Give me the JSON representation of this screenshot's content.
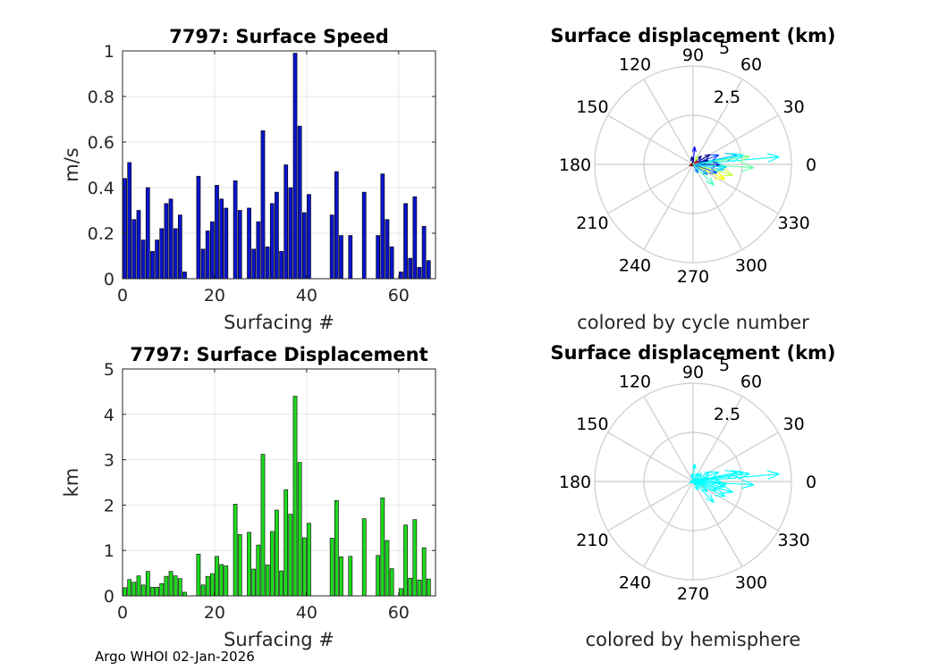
{
  "footer_text": "Argo WHOI 02-Jan-2026",
  "chart_data": [
    {
      "type": "bar",
      "title": "7797: Surface Speed",
      "xlabel": "Surfacing #",
      "ylabel": "m/s",
      "xlim": [
        0,
        68
      ],
      "ylim": [
        0,
        1
      ],
      "xticks": [
        0,
        20,
        40,
        60
      ],
      "yticks": [
        0,
        0.2,
        0.4,
        0.6,
        0.8,
        1
      ],
      "ytick_labels": [
        "0",
        "0.2",
        "0.4",
        "0.6",
        "0.8",
        "1"
      ],
      "bar_color": "#0a14c8",
      "x": [
        0,
        1,
        2,
        3,
        4,
        5,
        6,
        7,
        8,
        9,
        10,
        11,
        12,
        13,
        16,
        17,
        18,
        19,
        20,
        21,
        22,
        24,
        25,
        27,
        28,
        29,
        30,
        31,
        32,
        33,
        34,
        35,
        36,
        37,
        38,
        39,
        40,
        45,
        46,
        47,
        49,
        52,
        55,
        56,
        57,
        58,
        60,
        61,
        62,
        63,
        64,
        65,
        66
      ],
      "values": [
        0.44,
        0.51,
        0.26,
        0.3,
        0.17,
        0.4,
        0.12,
        0.17,
        0.22,
        0.33,
        0.35,
        0.22,
        0.28,
        0.03,
        0.45,
        0.13,
        0.21,
        0.25,
        0.41,
        0.35,
        0.31,
        0.43,
        0.3,
        0.31,
        0.13,
        0.25,
        0.65,
        0.14,
        0.33,
        0.38,
        0.12,
        0.5,
        0.4,
        0.99,
        0.67,
        0.29,
        0.37,
        0.28,
        0.47,
        0.19,
        0.19,
        0.38,
        0.19,
        0.46,
        0.26,
        0.14,
        0.03,
        0.33,
        0.09,
        0.36,
        0.05,
        0.23,
        0.08
      ]
    },
    {
      "type": "polar-compass",
      "title": "Surface displacement (km)",
      "caption": "colored by cycle number",
      "rlim": [
        0,
        5
      ],
      "r_tick_labels": [
        "2.5",
        "5"
      ],
      "theta_tick_labels": [
        "0",
        "30",
        "60",
        "90",
        "120",
        "150",
        "180",
        "210",
        "240",
        "270",
        "300",
        "330"
      ],
      "grid_color": "#d2d2d2",
      "arrows": [
        {
          "angle": 5,
          "r": 4.4,
          "color": "#00ffff"
        },
        {
          "angle": -3,
          "r": 3.1,
          "color": "#60ff9e"
        },
        {
          "angle": 12,
          "r": 2.3,
          "color": "#00c0ff"
        },
        {
          "angle": 8,
          "r": 2.9,
          "color": "#80ff80"
        },
        {
          "angle": -15,
          "r": 2.1,
          "color": "#c0ff40"
        },
        {
          "angle": -25,
          "r": 1.8,
          "color": "#ffff00"
        },
        {
          "angle": -10,
          "r": 1.6,
          "color": "#30d0ff"
        },
        {
          "angle": 20,
          "r": 1.4,
          "color": "#0040ff"
        },
        {
          "angle": 0,
          "r": 1.4,
          "color": "#0000c8"
        },
        {
          "angle": -20,
          "r": 1.3,
          "color": "#0060ff"
        },
        {
          "angle": 30,
          "r": 1.0,
          "color": "#000090"
        },
        {
          "angle": -35,
          "r": 0.9,
          "color": "#00a0ff"
        },
        {
          "angle": 15,
          "r": 0.8,
          "color": "#00008f"
        },
        {
          "angle": 45,
          "r": 0.6,
          "color": "#0000a0"
        },
        {
          "angle": 85,
          "r": 0.9,
          "color": "#0000ff"
        },
        {
          "angle": 100,
          "r": 0.4,
          "color": "#000080"
        },
        {
          "angle": -60,
          "r": 0.5,
          "color": "#0080ff"
        },
        {
          "angle": 60,
          "r": 0.5,
          "color": "#c0ff40"
        },
        {
          "angle": -5,
          "r": 1.7,
          "color": "#00e0ff"
        },
        {
          "angle": 25,
          "r": 0.3,
          "color": "#ff0000"
        },
        {
          "angle": 200,
          "r": 0.2,
          "color": "#800000"
        },
        {
          "angle": -45,
          "r": 1.5,
          "color": "#40ffc0"
        },
        {
          "angle": 10,
          "r": 2.6,
          "color": "#00ffff"
        }
      ]
    },
    {
      "type": "bar",
      "title": "7797: Surface Displacement",
      "xlabel": "Surfacing #",
      "ylabel": "km",
      "xlim": [
        0,
        68
      ],
      "ylim": [
        0,
        5
      ],
      "xticks": [
        0,
        20,
        40,
        60
      ],
      "yticks": [
        0,
        1,
        2,
        3,
        4,
        5
      ],
      "ytick_labels": [
        "0",
        "1",
        "2",
        "3",
        "4",
        "5"
      ],
      "bar_color": "#1ed91e",
      "x": [
        0,
        1,
        2,
        3,
        4,
        5,
        6,
        7,
        8,
        9,
        10,
        11,
        12,
        13,
        16,
        17,
        18,
        19,
        20,
        21,
        22,
        24,
        25,
        27,
        28,
        29,
        30,
        31,
        32,
        33,
        34,
        35,
        36,
        37,
        38,
        39,
        40,
        45,
        46,
        47,
        49,
        52,
        55,
        56,
        57,
        58,
        60,
        61,
        62,
        63,
        64,
        65,
        66
      ],
      "values": [
        0.18,
        0.36,
        0.3,
        0.44,
        0.24,
        0.54,
        0.19,
        0.19,
        0.27,
        0.43,
        0.54,
        0.44,
        0.38,
        0.08,
        0.92,
        0.24,
        0.43,
        0.49,
        0.87,
        0.69,
        0.66,
        2.02,
        1.35,
        1.4,
        0.59,
        1.12,
        3.12,
        0.68,
        1.42,
        1.89,
        0.55,
        2.34,
        1.8,
        4.4,
        2.94,
        1.28,
        1.6,
        1.27,
        2.1,
        0.86,
        0.87,
        1.7,
        0.89,
        2.16,
        1.22,
        0.6,
        0.16,
        1.56,
        0.39,
        1.68,
        0.35,
        1.06,
        0.37
      ]
    },
    {
      "type": "polar-compass",
      "title": "Surface displacement (km)",
      "caption": "colored by hemisphere",
      "rlim": [
        0,
        5
      ],
      "r_tick_labels": [
        "2.5",
        "5"
      ],
      "theta_tick_labels": [
        "0",
        "30",
        "60",
        "90",
        "120",
        "150",
        "180",
        "210",
        "240",
        "270",
        "300",
        "330"
      ],
      "grid_color": "#d2d2d2",
      "arrows": [
        {
          "angle": 5,
          "r": 4.4,
          "color": "#00ffff"
        },
        {
          "angle": -3,
          "r": 3.1,
          "color": "#00ffff"
        },
        {
          "angle": 12,
          "r": 2.3,
          "color": "#00ffff"
        },
        {
          "angle": 8,
          "r": 2.9,
          "color": "#00ffff"
        },
        {
          "angle": -15,
          "r": 2.1,
          "color": "#00ffff"
        },
        {
          "angle": -25,
          "r": 1.8,
          "color": "#00ffff"
        },
        {
          "angle": -10,
          "r": 1.6,
          "color": "#00ffff"
        },
        {
          "angle": 20,
          "r": 1.4,
          "color": "#00ffff"
        },
        {
          "angle": 0,
          "r": 1.4,
          "color": "#00ffff"
        },
        {
          "angle": -20,
          "r": 1.3,
          "color": "#00ffff"
        },
        {
          "angle": 30,
          "r": 1.0,
          "color": "#00ffff"
        },
        {
          "angle": -35,
          "r": 0.9,
          "color": "#00ffff"
        },
        {
          "angle": 15,
          "r": 0.8,
          "color": "#00ffff"
        },
        {
          "angle": 45,
          "r": 0.6,
          "color": "#00ffff"
        },
        {
          "angle": 85,
          "r": 0.9,
          "color": "#00ffff"
        },
        {
          "angle": 100,
          "r": 0.4,
          "color": "#00ffff"
        },
        {
          "angle": -60,
          "r": 0.5,
          "color": "#00ffff"
        },
        {
          "angle": 60,
          "r": 0.5,
          "color": "#00ffff"
        },
        {
          "angle": -5,
          "r": 1.7,
          "color": "#00ffff"
        },
        {
          "angle": 25,
          "r": 0.3,
          "color": "#00ffff"
        },
        {
          "angle": 200,
          "r": 0.2,
          "color": "#00ffff"
        },
        {
          "angle": -45,
          "r": 1.5,
          "color": "#00ffff"
        },
        {
          "angle": 10,
          "r": 2.6,
          "color": "#00ffff"
        }
      ]
    }
  ]
}
